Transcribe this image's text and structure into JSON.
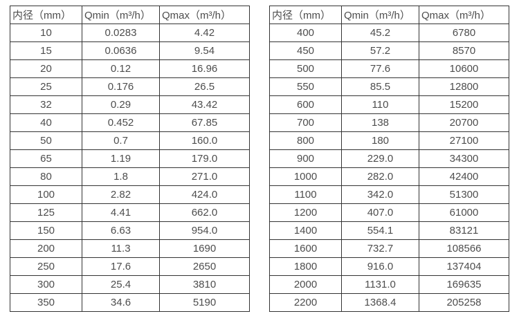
{
  "colors": {
    "background": "#ffffff",
    "border": "#333333",
    "text": "#4d4d4d"
  },
  "tables": [
    {
      "name": "flow-table-small-diameters",
      "headers": [
        "内径（mm）",
        "Qmin（m³/h）",
        "Qmax（m³/h）"
      ],
      "rows": [
        [
          "10",
          "0.0283",
          "4.42"
        ],
        [
          "15",
          "0.0636",
          "9.54"
        ],
        [
          "20",
          "0.12",
          "16.96"
        ],
        [
          "25",
          "0.176",
          "26.5"
        ],
        [
          "32",
          "0.29",
          "43.42"
        ],
        [
          "40",
          "0.452",
          "67.85"
        ],
        [
          "50",
          "0.7",
          "160.0"
        ],
        [
          "65",
          "1.19",
          "179.0"
        ],
        [
          "80",
          "1.8",
          "271.0"
        ],
        [
          "100",
          "2.82",
          "424.0"
        ],
        [
          "125",
          "4.41",
          "662.0"
        ],
        [
          "150",
          "6.63",
          "954.0"
        ],
        [
          "200",
          "11.3",
          "1690"
        ],
        [
          "250",
          "17.6",
          "2650"
        ],
        [
          "300",
          "25.4",
          "3810"
        ],
        [
          "350",
          "34.6",
          "5190"
        ]
      ]
    },
    {
      "name": "flow-table-large-diameters",
      "headers": [
        "内径（mm）",
        "Qmin（m³/h）",
        "Qmax（m³/h）"
      ],
      "rows": [
        [
          "400",
          "45.2",
          "6780"
        ],
        [
          "450",
          "57.2",
          "8570"
        ],
        [
          "500",
          "77.6",
          "10600"
        ],
        [
          "550",
          "85.5",
          "12800"
        ],
        [
          "600",
          "110",
          "15200"
        ],
        [
          "700",
          "138",
          "20700"
        ],
        [
          "800",
          "180",
          "27100"
        ],
        [
          "900",
          "229.0",
          "34300"
        ],
        [
          "1000",
          "282.0",
          "42400"
        ],
        [
          "1100",
          "342.0",
          "51300"
        ],
        [
          "1200",
          "407.0",
          "61000"
        ],
        [
          "1400",
          "554.1",
          "83121"
        ],
        [
          "1600",
          "732.7",
          "108566"
        ],
        [
          "1800",
          "916.0",
          "137404"
        ],
        [
          "2000",
          "1131.0",
          "169635"
        ],
        [
          "2200",
          "1368.4",
          "205258"
        ]
      ]
    }
  ]
}
